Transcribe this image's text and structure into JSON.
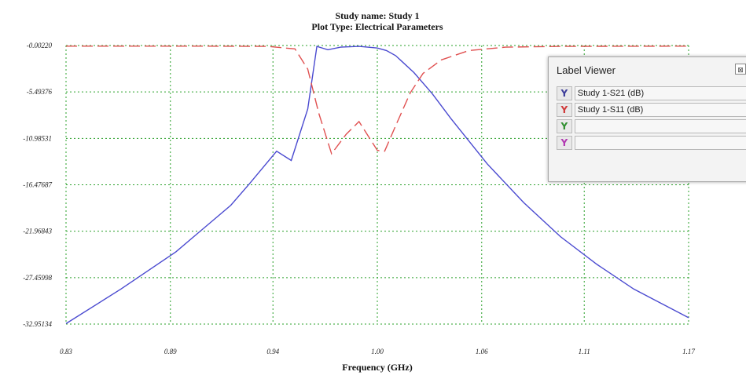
{
  "chart_data": {
    "type": "line",
    "title": "Study name: Study 1",
    "subtitle": "Plot Type: Electrical Parameters",
    "xlabel": "Frequency (GHz)",
    "ylabel": "",
    "xlim": [
      0.83,
      1.17
    ],
    "ylim": [
      -32.95134,
      -0.0022
    ],
    "x_ticks": [
      "0.83",
      "0.89",
      "0.94",
      "1.00",
      "1.06",
      "1.11",
      "1.17"
    ],
    "x_tick_values": [
      0.83,
      0.887,
      0.943,
      1.0,
      1.057,
      1.113,
      1.17
    ],
    "y_ticks": [
      "-0.00220",
      "-5.49376",
      "-10.98531",
      "-16.47687",
      "-21.96843",
      "-27.45998",
      "-32.95134"
    ],
    "y_tick_values": [
      -0.0022,
      -5.49376,
      -10.98531,
      -16.47687,
      -21.96843,
      -27.45998,
      -32.95134
    ],
    "grid": true,
    "series": [
      {
        "name": "Study 1-S21 (dB)",
        "color": "#4a4ad0",
        "dash": "solid",
        "x": [
          0.83,
          0.86,
          0.89,
          0.92,
          0.93,
          0.945,
          0.953,
          0.962,
          0.967,
          0.973,
          0.98,
          0.99,
          1.0,
          1.005,
          1.01,
          1.02,
          1.03,
          1.04,
          1.05,
          1.06,
          1.08,
          1.1,
          1.12,
          1.14,
          1.17
        ],
        "y": [
          -32.9,
          -28.8,
          -24.4,
          -18.9,
          -16.4,
          -12.5,
          -13.6,
          -7.5,
          -0.1,
          -0.5,
          -0.2,
          -0.1,
          -0.3,
          -0.6,
          -1.2,
          -3.2,
          -5.7,
          -8.6,
          -11.3,
          -14.0,
          -18.6,
          -22.6,
          -25.9,
          -28.8,
          -32.2
        ]
      },
      {
        "name": "Study 1-S11 (dB)",
        "color": "#e05050",
        "dash": "dashed",
        "x": [
          0.83,
          0.9,
          0.94,
          0.955,
          0.962,
          0.968,
          0.975,
          0.983,
          0.99,
          1.0,
          1.004,
          1.01,
          1.018,
          1.025,
          1.035,
          1.05,
          1.07,
          1.1,
          1.17
        ],
        "y": [
          -0.08,
          -0.08,
          -0.1,
          -0.4,
          -2.8,
          -8.0,
          -12.8,
          -10.5,
          -9.0,
          -12.4,
          -12.5,
          -9.5,
          -5.6,
          -3.3,
          -1.7,
          -0.6,
          -0.2,
          -0.1,
          -0.08
        ]
      }
    ]
  },
  "label_viewer": {
    "title": "Label Viewer",
    "close_glyph": "⊠",
    "rows": [
      {
        "label": "Study 1-S21 (dB)",
        "color": "#3d3d9a",
        "icon": "y1-icon"
      },
      {
        "label": "Study 1-S11 (dB)",
        "color": "#d03a3a",
        "icon": "y2-icon"
      },
      {
        "label": "",
        "color": "#2f8f2f",
        "icon": "y3-icon"
      },
      {
        "label": "",
        "color": "#b23ab2",
        "icon": "y4-icon"
      }
    ]
  }
}
